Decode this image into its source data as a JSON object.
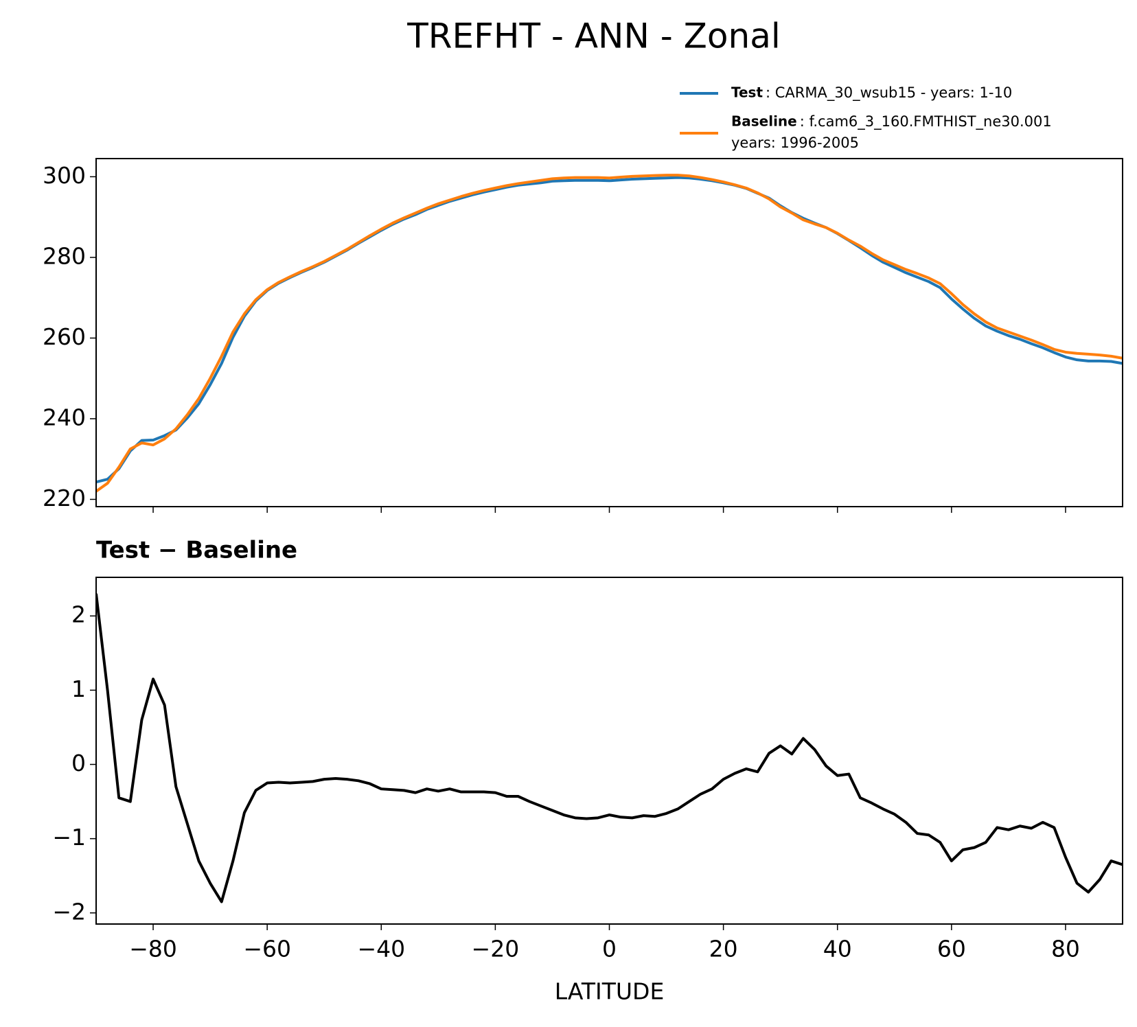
{
  "title": "TREFHT - ANN - Zonal",
  "chart_data": [
    {
      "type": "line",
      "legend": "upper right",
      "x": [
        -90,
        -88,
        -86,
        -84,
        -82,
        -80,
        -78,
        -76,
        -74,
        -72,
        -70,
        -68,
        -66,
        -64,
        -62,
        -60,
        -58,
        -56,
        -54,
        -52,
        -50,
        -48,
        -46,
        -44,
        -42,
        -40,
        -38,
        -36,
        -34,
        -32,
        -30,
        -28,
        -26,
        -24,
        -22,
        -20,
        -18,
        -16,
        -14,
        -12,
        -10,
        -8,
        -6,
        -4,
        -2,
        0,
        2,
        4,
        6,
        8,
        10,
        12,
        14,
        16,
        18,
        20,
        22,
        24,
        26,
        28,
        30,
        32,
        34,
        36,
        38,
        40,
        42,
        44,
        46,
        48,
        50,
        52,
        54,
        56,
        58,
        60,
        62,
        64,
        66,
        68,
        70,
        72,
        74,
        76,
        78,
        80,
        82,
        84,
        86,
        88,
        90
      ],
      "xlim": [
        -90,
        90
      ],
      "xticks": [
        -80,
        -60,
        -40,
        -20,
        0,
        20,
        40,
        60,
        80
      ],
      "ylim": [
        218.2,
        304.5
      ],
      "yticks": [
        220,
        240,
        260,
        280,
        300
      ],
      "series": [
        {
          "name": "Test",
          "description": [
            ": CARMA_30_wsub15 - years: 1-10"
          ],
          "color": "#1f77b4",
          "values": [
            224.3,
            225.0,
            227.6,
            232.0,
            234.6,
            234.7,
            235.8,
            237.2,
            240.2,
            243.7,
            248.4,
            253.7,
            260.2,
            265.4,
            269.2,
            271.8,
            273.6,
            275.0,
            276.3,
            277.5,
            278.8,
            280.3,
            281.8,
            283.5,
            285.1,
            286.7,
            288.2,
            289.5,
            290.6,
            291.9,
            292.9,
            293.9,
            294.7,
            295.5,
            296.2,
            296.8,
            297.4,
            297.9,
            298.2,
            298.5,
            298.9,
            299.0,
            299.1,
            299.1,
            299.1,
            299.0,
            299.2,
            299.4,
            299.5,
            299.6,
            299.7,
            299.8,
            299.7,
            299.4,
            299.0,
            298.5,
            297.9,
            297.1,
            295.9,
            294.7,
            292.8,
            291.1,
            289.7,
            288.5,
            287.4,
            285.9,
            284.2,
            282.4,
            280.5,
            278.8,
            277.5,
            276.2,
            275.1,
            274.0,
            272.5,
            269.7,
            267.2,
            264.9,
            263.0,
            261.7,
            260.6,
            259.7,
            258.6,
            257.6,
            256.4,
            255.3,
            254.6,
            254.3,
            254.3,
            254.2,
            253.7
          ]
        },
        {
          "name": "Baseline",
          "description": [
            ": f.cam6_3_160.FMTHIST_ne30.001",
            "years: 1996-2005"
          ],
          "color": "#ff7f0e",
          "values": [
            222,
            224,
            228,
            232.5,
            234,
            233.5,
            235,
            237.5,
            241,
            245,
            250,
            255.5,
            261.5,
            266,
            269.5,
            272,
            273.8,
            275.2,
            276.5,
            277.7,
            279,
            280.5,
            282,
            283.7,
            285.4,
            287,
            288.5,
            289.8,
            291,
            292.2,
            293.3,
            294.2,
            295.1,
            295.9,
            296.6,
            297.2,
            297.8,
            298.3,
            298.7,
            299.1,
            299.5,
            299.7,
            299.8,
            299.8,
            299.8,
            299.7,
            299.9,
            300.1,
            300.2,
            300.3,
            300.4,
            300.4,
            300.2,
            299.8,
            299.3,
            298.7,
            298,
            297.2,
            296,
            294.5,
            292.5,
            291,
            289.3,
            288.3,
            287.4,
            286,
            284.3,
            282.8,
            281,
            279.4,
            278.2,
            277,
            276,
            274.9,
            273.5,
            271,
            268.3,
            266,
            264,
            262.5,
            261.5,
            260.5,
            259.5,
            258.4,
            257.2,
            256.5,
            256.2,
            256,
            255.8,
            255.5,
            255
          ]
        }
      ]
    },
    {
      "type": "line",
      "title": "Test − Baseline",
      "xlabel": "LATITUDE",
      "x": [
        -90,
        -88,
        -86,
        -84,
        -82,
        -80,
        -78,
        -76,
        -74,
        -72,
        -70,
        -68,
        -66,
        -64,
        -62,
        -60,
        -58,
        -56,
        -54,
        -52,
        -50,
        -48,
        -46,
        -44,
        -42,
        -40,
        -38,
        -36,
        -34,
        -32,
        -30,
        -28,
        -26,
        -24,
        -22,
        -20,
        -18,
        -16,
        -14,
        -12,
        -10,
        -8,
        -6,
        -4,
        -2,
        0,
        2,
        4,
        6,
        8,
        10,
        12,
        14,
        16,
        18,
        20,
        22,
        24,
        26,
        28,
        30,
        32,
        34,
        36,
        38,
        40,
        42,
        44,
        46,
        48,
        50,
        52,
        54,
        56,
        58,
        60,
        62,
        64,
        66,
        68,
        70,
        72,
        74,
        76,
        78,
        80,
        82,
        84,
        86,
        88,
        90
      ],
      "xlim": [
        -90,
        90
      ],
      "xticks": [
        {
          "value": -80,
          "label": "−80"
        },
        {
          "value": -60,
          "label": "−60"
        },
        {
          "value": -40,
          "label": "−40"
        },
        {
          "value": -20,
          "label": "−20"
        },
        0,
        20,
        40,
        60,
        80
      ],
      "ylim": [
        -2.15,
        2.52
      ],
      "yticks": [
        {
          "value": -2,
          "label": "−2"
        },
        {
          "value": -1,
          "label": "−1"
        },
        0,
        1,
        2
      ],
      "series": [
        {
          "color": "#000000",
          "values": [
            2.3,
            1.0,
            -0.45,
            -0.5,
            0.6,
            1.15,
            0.8,
            -0.3,
            -0.8,
            -1.3,
            -1.6,
            -1.85,
            -1.3,
            -0.65,
            -0.35,
            -0.25,
            -0.24,
            -0.25,
            -0.24,
            -0.23,
            -0.2,
            -0.19,
            -0.2,
            -0.22,
            -0.26,
            -0.33,
            -0.34,
            -0.35,
            -0.38,
            -0.33,
            -0.36,
            -0.33,
            -0.37,
            -0.37,
            -0.37,
            -0.38,
            -0.43,
            -0.43,
            -0.5,
            -0.56,
            -0.62,
            -0.68,
            -0.72,
            -0.73,
            -0.72,
            -0.68,
            -0.71,
            -0.72,
            -0.69,
            -0.7,
            -0.66,
            -0.6,
            -0.5,
            -0.4,
            -0.33,
            -0.2,
            -0.12,
            -0.06,
            -0.1,
            0.15,
            0.25,
            0.14,
            0.35,
            0.2,
            -0.02,
            -0.15,
            -0.13,
            -0.45,
            -0.52,
            -0.6,
            -0.67,
            -0.78,
            -0.93,
            -0.95,
            -1.05,
            -1.3,
            -1.15,
            -1.12,
            -1.05,
            -0.85,
            -0.88,
            -0.83,
            -0.86,
            -0.78,
            -0.85,
            -1.25,
            -1.6,
            -1.72,
            -1.55,
            -1.3,
            -1.35
          ]
        }
      ]
    }
  ]
}
